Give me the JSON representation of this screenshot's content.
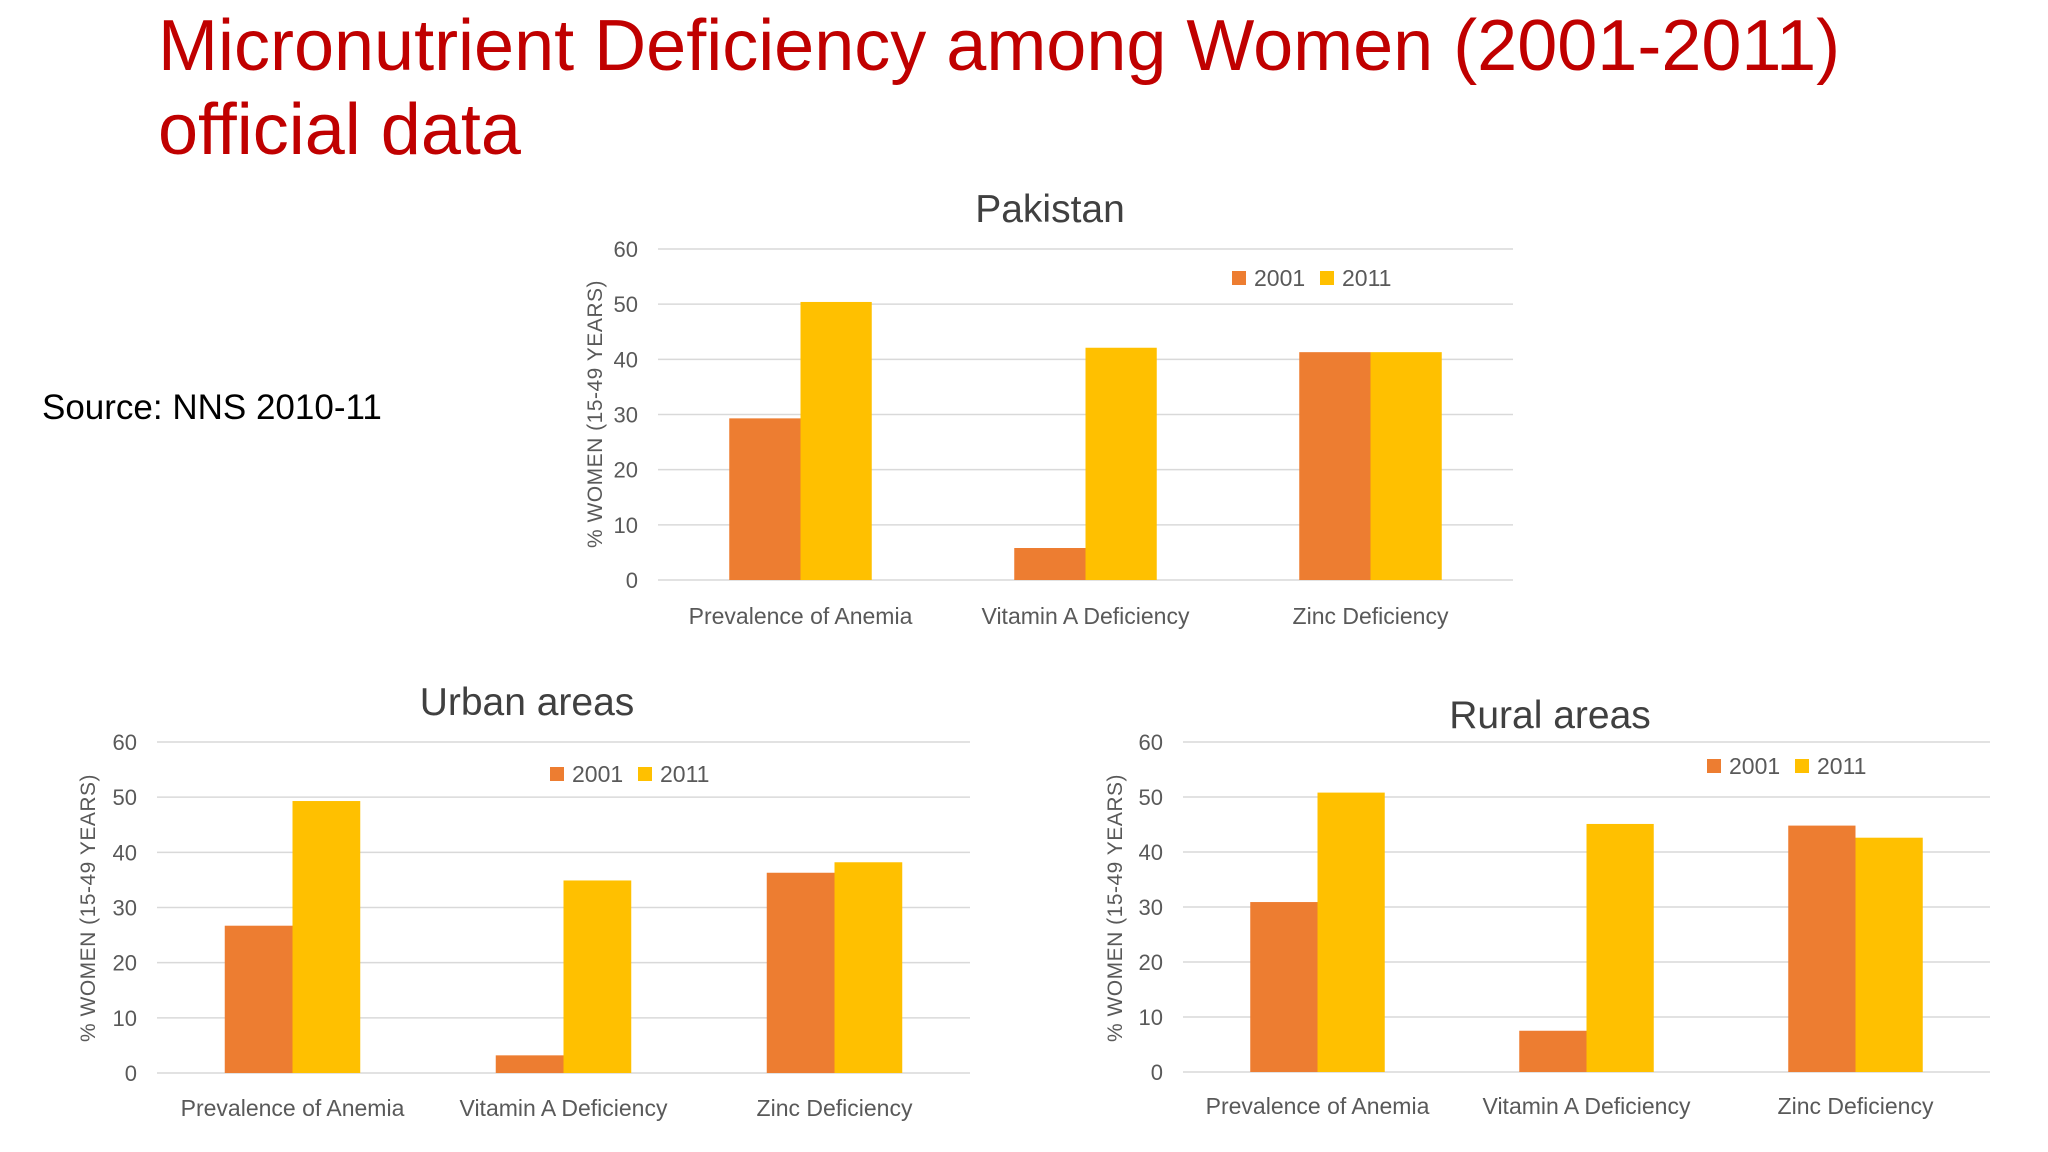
{
  "slide": {
    "title": "Micronutrient Deficiency among Women (2001-2011) official data",
    "source": "Source: NNS 2010-11"
  },
  "colors": {
    "title": "#c00000",
    "series_2001": "#ed7d31",
    "series_2011": "#ffc000",
    "gridline": "#d9d9d9",
    "text": "#595959"
  },
  "chart_data": [
    {
      "type": "bar",
      "title": "Pakistan",
      "ylabel": "% WOMEN (15-49 YEARS)",
      "xlabel": "",
      "ylim": [
        0,
        60
      ],
      "yticks": [
        0,
        10,
        20,
        30,
        40,
        50,
        60
      ],
      "categories": [
        "Prevalence of Anemia",
        "Vitamin A Deficiency",
        "Zinc Deficiency"
      ],
      "series": [
        {
          "name": "2001",
          "values": [
            29.3,
            5.8,
            41.3
          ]
        },
        {
          "name": "2011",
          "values": [
            50.4,
            42.1,
            41.3
          ]
        }
      ],
      "legend": "top-right",
      "grid": true
    },
    {
      "type": "bar",
      "title": "Urban areas",
      "ylabel": "% WOMEN (15-49 YEARS)",
      "xlabel": "",
      "ylim": [
        0,
        60
      ],
      "yticks": [
        0,
        10,
        20,
        30,
        40,
        50,
        60
      ],
      "categories": [
        "Prevalence of Anemia",
        "Vitamin A Deficiency",
        "Zinc Deficiency"
      ],
      "series": [
        {
          "name": "2001",
          "values": [
            26.7,
            3.2,
            36.3
          ]
        },
        {
          "name": "2011",
          "values": [
            49.3,
            34.9,
            38.2
          ]
        }
      ],
      "legend": "top-center",
      "grid": true
    },
    {
      "type": "bar",
      "title": "Rural areas",
      "ylabel": "% WOMEN (15-49 YEARS)",
      "xlabel": "",
      "ylim": [
        0,
        60
      ],
      "yticks": [
        0,
        10,
        20,
        30,
        40,
        50,
        60
      ],
      "categories": [
        "Prevalence of Anemia",
        "Vitamin A Deficiency",
        "Zinc Deficiency"
      ],
      "series": [
        {
          "name": "2001",
          "values": [
            30.9,
            7.5,
            44.8
          ]
        },
        {
          "name": "2011",
          "values": [
            50.8,
            45.1,
            42.6
          ]
        }
      ],
      "legend": "top-right",
      "grid": true
    }
  ]
}
